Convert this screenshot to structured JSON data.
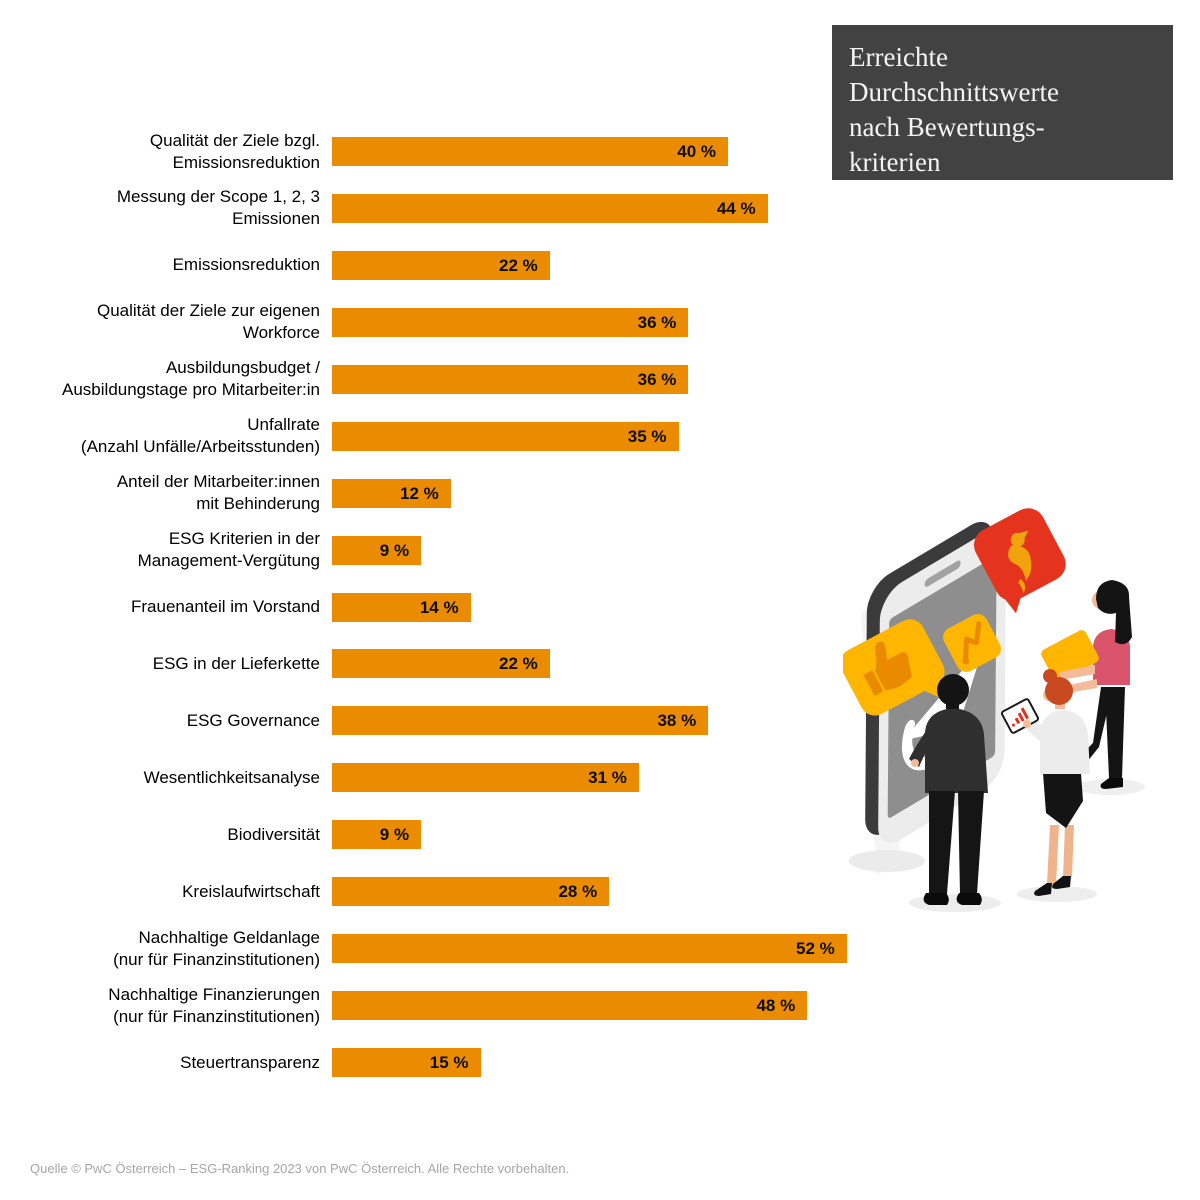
{
  "title_box": {
    "lines": [
      "Erreichte",
      "Durchschnittswerte",
      "nach Bewertungs-",
      "kriterien"
    ],
    "background": "#424242",
    "text_color": "#f4f4f4"
  },
  "chart_data": {
    "type": "bar",
    "orientation": "horizontal",
    "title": "Erreichte Durchschnittswerte nach Bewertungskriterien",
    "unit": "%",
    "grid": false,
    "value_label_position": "inside-right",
    "bar_color": "#EB8C00",
    "xlim": [
      0,
      55
    ],
    "categories": [
      [
        "Qualität der Ziele bzgl.",
        "Emissionsreduktion"
      ],
      [
        "Messung der Scope 1, 2, 3",
        "Emissionen"
      ],
      [
        "Emissionsreduktion"
      ],
      [
        "Qualität der Ziele zur eigenen",
        "Workforce"
      ],
      [
        "Ausbildungsbudget /",
        "Ausbildungstage pro Mitarbeiter:in"
      ],
      [
        "Unfallrate",
        "(Anzahl Unfälle/Arbeitsstunden)"
      ],
      [
        "Anteil der Mitarbeiter:innen",
        "mit Behinderung"
      ],
      [
        "ESG Kriterien in der",
        "Management-Vergütung"
      ],
      [
        "Frauenanteil im Vorstand"
      ],
      [
        "ESG in der Lieferkette"
      ],
      [
        "ESG Governance"
      ],
      [
        "Wesentlichkeitsanalyse"
      ],
      [
        "Biodiversität"
      ],
      [
        "Kreislaufwirtschaft"
      ],
      [
        "Nachhaltige Geldanlage",
        "(nur für Finanzinstitutionen)"
      ],
      [
        "Nachhaltige Finanzierungen",
        "(nur für Finanzinstitutionen)"
      ],
      [
        "Steuertransparenz"
      ]
    ],
    "values": [
      40,
      44,
      22,
      36,
      36,
      35,
      12,
      9,
      14,
      22,
      38,
      31,
      9,
      28,
      52,
      48,
      15
    ],
    "value_labels": [
      "40 %",
      "44 %",
      "22 %",
      "36 %",
      "36 %",
      "35 %",
      "12 %",
      "9 %",
      "14 %",
      "22 %",
      "38 %",
      "31 %",
      "9 %",
      "28 %",
      "52 %",
      "48 %",
      "15 %"
    ]
  },
  "footer": {
    "source": "Quelle © PwC Österreich – ESG-Ranking 2023 von PwC Österreich. Alle Rechte vorbehalten."
  },
  "illustration": {
    "description": "Three people in front of a large isometric smartphone with social-media speech bubbles",
    "icons": [
      "smartphone-icon",
      "thumbs-up-bubble-icon",
      "bird-message-bubble-icon",
      "trend-zigzag-tile-icon",
      "paper-plane-icon",
      "document-folder-icon",
      "tablet-bar-chart-icon"
    ],
    "colors": {
      "phone_frame": "#ececec",
      "phone_edge": "#3b3b3b",
      "screen": "#8e8e8e",
      "bubble_yellow": "#FFB600",
      "bubble_red": "#E5341E",
      "glyph_orange": "#E98A00",
      "skin": "#f3bb98",
      "pink_top": "#D9536B",
      "hair_red": "#C94A20",
      "suit_dark": "#2f2f2f",
      "chart_red": "#E0301E"
    }
  }
}
